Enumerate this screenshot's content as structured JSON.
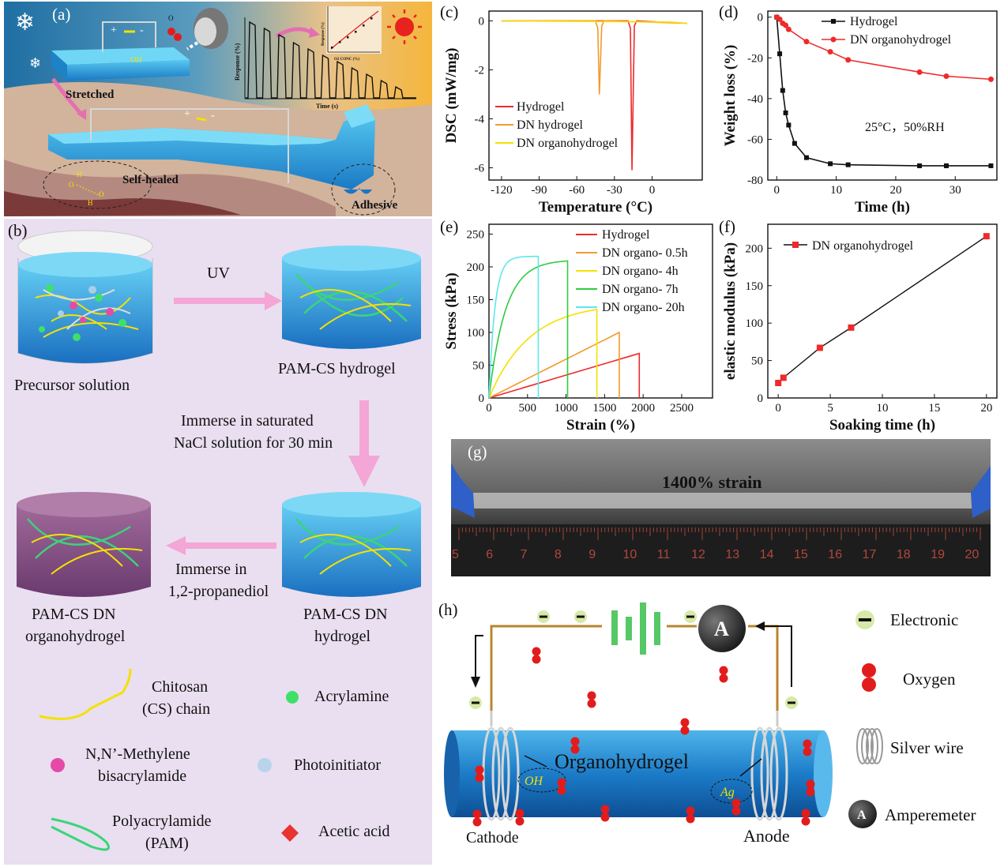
{
  "panels": {
    "a": {
      "label": "(a)",
      "stretched": "Stretched",
      "self_healed": "Self-healed",
      "adhesive": "Adhesive",
      "o2": "O",
      "o2_sub": "2",
      "oh": "OH",
      "plus": "+",
      "minus": "-",
      "inset_xlabel": "Time (s)",
      "inset_ylabel": "Response (%)",
      "mini_xlabel": "O2 CONC (%)",
      "mini_ylabel": "Response (%)",
      "bond_o": "O",
      "bond_h": "H"
    },
    "b": {
      "label": "(b)",
      "uv": "UV",
      "precursor": "Precursor solution",
      "pamcs_hydrogel": "PAM-CS hydrogel",
      "immerse_nacl_1": "Immerse in saturated",
      "immerse_nacl_2": "NaCl solution for 30 min",
      "dn_hydrogel_1": "PAM-CS DN",
      "dn_hydrogel_2": "hydrogel",
      "immerse_prop_1": "Immerse in",
      "immerse_prop_2": "1,2-propanediol",
      "dn_organo_1": "PAM-CS DN",
      "dn_organo_2": "organohydrogel",
      "legend": [
        {
          "name": "Chitosan",
          "name2": "(CS) chain",
          "icon": "yellow-chain"
        },
        {
          "name": "Acrylamine",
          "name2": "",
          "icon": "green-dot"
        },
        {
          "name": "N,N’-Methylene",
          "name2": "bisacrylamide",
          "icon": "pink-dot"
        },
        {
          "name": "Photoinitiator",
          "name2": "",
          "icon": "blue-dot"
        },
        {
          "name": "Polyacrylamide",
          "name2": "(PAM)",
          "icon": "green-chain"
        },
        {
          "name": "Acetic acid",
          "name2": "",
          "icon": "red-diamond"
        }
      ]
    },
    "g": {
      "label": "(g)",
      "text": "1400% strain",
      "ruler_numbers": [
        "5",
        "6",
        "7",
        "8",
        "9",
        "10",
        "11",
        "12",
        "13",
        "14",
        "15",
        "16",
        "17",
        "18",
        "19",
        "20"
      ]
    },
    "h": {
      "label": "(h)",
      "organo": "Organohydrogel",
      "oh": "OH",
      "ag": "Ag",
      "cathode": "Cathode",
      "anode": "Anode",
      "ammeter": "A",
      "legend": [
        {
          "name": "Electronic",
          "icon": "electron-icon"
        },
        {
          "name": "Oxygen",
          "icon": "oxygen-icon"
        },
        {
          "name": "Silver wire",
          "icon": "coil-icon"
        },
        {
          "name": "Amperemeter",
          "icon": "ammeter-icon"
        }
      ]
    }
  },
  "chart_data": [
    {
      "id": "c",
      "label": "(c)",
      "type": "line",
      "xlabel": "Temperature (°C)",
      "ylabel": "DSC (mW/mg)",
      "xlim": [
        -130,
        40
      ],
      "ylim": [
        -6.5,
        0.4
      ],
      "xticks": [
        -120,
        -90,
        -60,
        -30,
        0
      ],
      "yticks": [
        0,
        -2,
        -4,
        -6
      ],
      "legend_position": "center-left",
      "series": [
        {
          "name": "Hydrogel",
          "color": "#ee2a2a",
          "peak_x": -16,
          "peak_y": -6.1
        },
        {
          "name": "DN hydrogel",
          "color": "#f39a2b",
          "peak_x": -42,
          "peak_y": -3.0
        },
        {
          "name": "DN organohydrogel",
          "color": "#f5e100",
          "peak_x": null,
          "peak_y": null
        }
      ]
    },
    {
      "id": "d",
      "label": "(d)",
      "type": "line",
      "xlabel": "Time (h)",
      "ylabel": "Weight loss (%)",
      "xlim": [
        -1.5,
        37
      ],
      "ylim": [
        -80,
        3
      ],
      "xticks": [
        0,
        10,
        20,
        30
      ],
      "yticks": [
        0,
        -20,
        -40,
        -60,
        -80
      ],
      "annotation": "25°C，50%RH",
      "legend_position": "top-right",
      "series": [
        {
          "name": "Hydrogel",
          "color": "#111111",
          "marker": "square",
          "x": [
            0,
            0.5,
            1,
            1.5,
            2,
            3,
            5,
            9,
            12,
            24,
            28.5,
            36
          ],
          "y": [
            0,
            -18,
            -36,
            -47,
            -53,
            -62,
            -69,
            -72,
            -72.5,
            -73,
            -73,
            -73
          ]
        },
        {
          "name": "DN organohydrogel",
          "color": "#ee2a2a",
          "marker": "circle",
          "x": [
            0,
            0.5,
            1,
            1.5,
            2,
            5,
            9,
            12,
            24,
            28.5,
            36
          ],
          "y": [
            0,
            -1,
            -3,
            -4,
            -6,
            -12,
            -17,
            -21,
            -27,
            -29,
            -30.5
          ]
        }
      ]
    },
    {
      "id": "e",
      "label": "(e)",
      "type": "line",
      "xlabel": "Strain (%)",
      "ylabel": "Stress (kPa)",
      "xlim": [
        0,
        2900
      ],
      "ylim": [
        0,
        265
      ],
      "xticks": [
        0,
        500,
        1000,
        1500,
        2000,
        2500
      ],
      "yticks": [
        0,
        50,
        100,
        150,
        200,
        250
      ],
      "legend_position": "top-right",
      "series": [
        {
          "name": "Hydrogel",
          "color": "#ee2a2a",
          "break_strain": 1950,
          "max_stress": 68
        },
        {
          "name": "DN organo- 0.5h",
          "color": "#f39a2b",
          "break_strain": 1690,
          "max_stress": 100
        },
        {
          "name": "DN organo- 4h",
          "color": "#f5e100",
          "break_strain": 1400,
          "max_stress": 135
        },
        {
          "name": "DN organo- 7h",
          "color": "#2ecc40",
          "break_strain": 1020,
          "max_stress": 209
        },
        {
          "name": "DN organo- 20h",
          "color": "#5fe8e8",
          "break_strain": 640,
          "max_stress": 216
        }
      ]
    },
    {
      "id": "f",
      "label": "(f)",
      "type": "line",
      "xlabel": "Soaking time (h)",
      "ylabel": "elastic modulus (kPa)",
      "xlim": [
        -1,
        21
      ],
      "ylim": [
        0,
        232
      ],
      "xticks": [
        0,
        5,
        10,
        15,
        20
      ],
      "yticks": [
        0,
        50,
        100,
        150,
        200
      ],
      "legend_position": "top-left",
      "series": [
        {
          "name": "DN organohydrogel",
          "color": "#ee2a2a",
          "marker": "square",
          "x": [
            0,
            0.5,
            4,
            7,
            20
          ],
          "y": [
            20,
            27,
            67,
            94,
            216
          ]
        }
      ]
    }
  ]
}
